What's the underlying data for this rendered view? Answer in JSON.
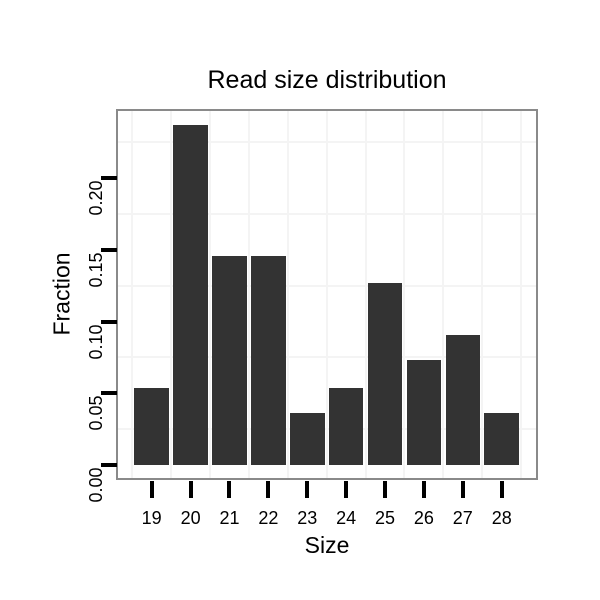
{
  "chart_data": {
    "type": "bar",
    "title": "Read size distribution",
    "xlabel": "Size",
    "ylabel": "Fraction",
    "categories": [
      "19",
      "20",
      "21",
      "22",
      "23",
      "24",
      "25",
      "26",
      "27",
      "28"
    ],
    "values": [
      0.054,
      0.237,
      0.146,
      0.146,
      0.036,
      0.054,
      0.127,
      0.073,
      0.091,
      0.036
    ],
    "ylim": [
      0,
      0.248
    ],
    "yticks": [
      0,
      0.05,
      0.1,
      0.15,
      0.2
    ],
    "ytick_labels": [
      "0.00",
      "0.05",
      "0.10",
      "0.15",
      "0.20"
    ],
    "minor_gridlines_y": [
      0.025,
      0.075,
      0.125,
      0.175,
      0.225
    ],
    "grid": "minor gridlines only; vertical lines at category boundaries",
    "legend": "none",
    "colors": {
      "bar": "#333333",
      "panel_border": "#8a8a8a",
      "grid": "#f4f4f4",
      "text": "#000000",
      "background": "#ffffff"
    }
  }
}
